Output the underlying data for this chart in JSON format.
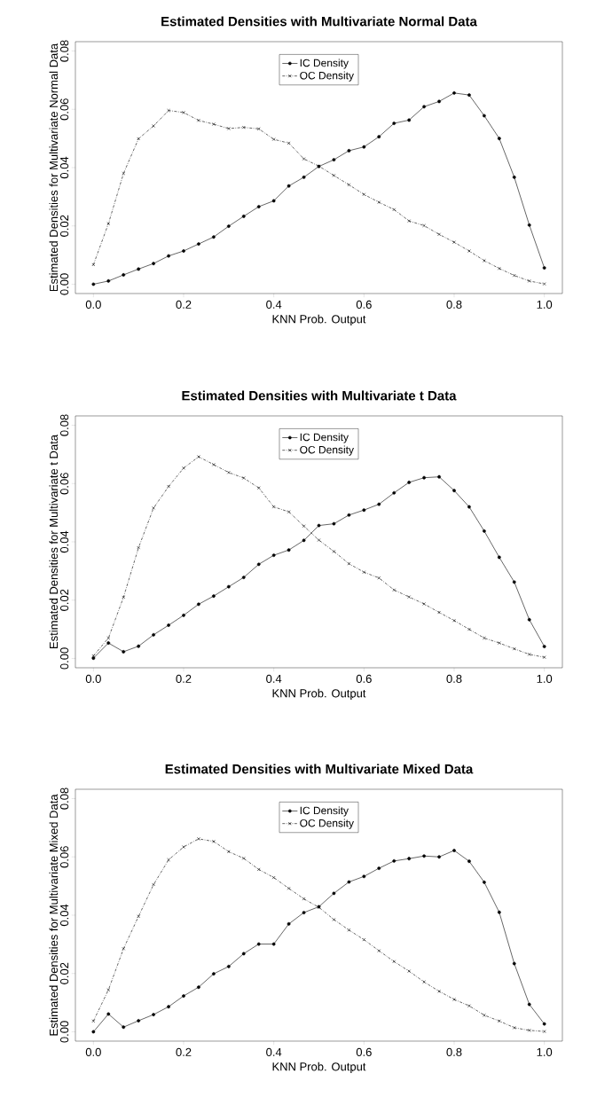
{
  "chart_data": [
    {
      "type": "line",
      "title": "Estimated Densities with Multivariate Normal Data",
      "xlabel": "KNN Prob. Output",
      "ylabel": "Estimated Densities for Multivariate Normal Data",
      "x": [
        0,
        0.0333,
        0.0667,
        0.1,
        0.1333,
        0.1667,
        0.2,
        0.2333,
        0.2667,
        0.3,
        0.3333,
        0.3667,
        0.4,
        0.4333,
        0.4667,
        0.5,
        0.5333,
        0.5667,
        0.6,
        0.6333,
        0.6667,
        0.7,
        0.7333,
        0.7667,
        0.8,
        0.8333,
        0.8667,
        0.9,
        0.9333,
        0.9667,
        1
      ],
      "series": [
        {
          "name": "IC Density",
          "color": "#000000",
          "marker": "circle",
          "line_style": "solid",
          "values": [
            0.0,
            0.0011,
            0.0032,
            0.0052,
            0.0071,
            0.0097,
            0.0114,
            0.0138,
            0.0162,
            0.0199,
            0.0233,
            0.0266,
            0.0286,
            0.0337,
            0.0367,
            0.0404,
            0.0427,
            0.0458,
            0.0471,
            0.0506,
            0.0552,
            0.0563,
            0.0609,
            0.0627,
            0.0656,
            0.0649,
            0.0578,
            0.05,
            0.0367,
            0.0203,
            0.0056
          ]
        },
        {
          "name": "OC Density",
          "color": "#000000",
          "marker": "cross",
          "line_style": "dashed",
          "values": [
            0.0067,
            0.0208,
            0.038,
            0.0499,
            0.0543,
            0.0596,
            0.0589,
            0.0562,
            0.0549,
            0.0534,
            0.0538,
            0.0533,
            0.0497,
            0.0484,
            0.043,
            0.0405,
            0.0373,
            0.0341,
            0.0308,
            0.0281,
            0.0256,
            0.0217,
            0.0201,
            0.0171,
            0.0144,
            0.0114,
            0.0081,
            0.0054,
            0.003,
            0.0011,
            0.0001
          ]
        }
      ],
      "xlim": [
        -0.04,
        1.04
      ],
      "ylim": [
        -0.0032,
        0.0832
      ],
      "xticks": [
        {
          "value": 0,
          "label": "0.0"
        },
        {
          "value": 0.2,
          "label": "0.2"
        },
        {
          "value": 0.4,
          "label": "0.4"
        },
        {
          "value": 0.6,
          "label": "0.6"
        },
        {
          "value": 0.8,
          "label": "0.8"
        },
        {
          "value": 1,
          "label": "1.0"
        }
      ],
      "yticks": [
        {
          "value": 0,
          "label": "0.00"
        },
        {
          "value": 0.02,
          "label": "0.02"
        },
        {
          "value": 0.04,
          "label": "0.04"
        },
        {
          "value": 0.06,
          "label": "0.06"
        },
        {
          "value": 0.08,
          "label": "0.08"
        }
      ],
      "legend": "top",
      "grid": false
    },
    {
      "type": "line",
      "title": "Estimated Densities with Multivariate t Data",
      "xlabel": "KNN Prob. Output",
      "ylabel": "Estimated Densities for Multivariate t Data",
      "x": [
        0,
        0.0333,
        0.0667,
        0.1,
        0.1333,
        0.1667,
        0.2,
        0.2333,
        0.2667,
        0.3,
        0.3333,
        0.3667,
        0.4,
        0.4333,
        0.4667,
        0.5,
        0.5333,
        0.5667,
        0.6,
        0.6333,
        0.6667,
        0.7,
        0.7333,
        0.7667,
        0.8,
        0.8333,
        0.8667,
        0.9,
        0.9333,
        0.9667,
        1
      ],
      "series": [
        {
          "name": "IC Density",
          "color": "#000000",
          "marker": "circle",
          "line_style": "solid",
          "values": [
            0.0001,
            0.0053,
            0.0023,
            0.0042,
            0.0081,
            0.0114,
            0.0148,
            0.0186,
            0.0214,
            0.0246,
            0.0278,
            0.0323,
            0.0354,
            0.0372,
            0.0405,
            0.0456,
            0.0462,
            0.0492,
            0.0509,
            0.0529,
            0.0568,
            0.0604,
            0.062,
            0.0623,
            0.0576,
            0.052,
            0.0437,
            0.0347,
            0.0262,
            0.0133,
            0.0041
          ]
        },
        {
          "name": "OC Density",
          "color": "#000000",
          "marker": "cross",
          "line_style": "dashed",
          "values": [
            0.0009,
            0.007,
            0.021,
            0.038,
            0.0516,
            0.059,
            0.0653,
            0.0692,
            0.0665,
            0.0638,
            0.0619,
            0.0585,
            0.052,
            0.0503,
            0.0454,
            0.0406,
            0.0367,
            0.0325,
            0.0296,
            0.0276,
            0.0235,
            0.0211,
            0.0187,
            0.0158,
            0.013,
            0.01,
            0.007,
            0.0053,
            0.0033,
            0.0014,
            0.0004
          ]
        }
      ],
      "xlim": [
        -0.04,
        1.04
      ],
      "ylim": [
        -0.0032,
        0.0832
      ],
      "xticks": [
        {
          "value": 0,
          "label": "0.0"
        },
        {
          "value": 0.2,
          "label": "0.2"
        },
        {
          "value": 0.4,
          "label": "0.4"
        },
        {
          "value": 0.6,
          "label": "0.6"
        },
        {
          "value": 0.8,
          "label": "0.8"
        },
        {
          "value": 1,
          "label": "1.0"
        }
      ],
      "yticks": [
        {
          "value": 0,
          "label": "0.00"
        },
        {
          "value": 0.02,
          "label": "0.02"
        },
        {
          "value": 0.04,
          "label": "0.04"
        },
        {
          "value": 0.06,
          "label": "0.06"
        },
        {
          "value": 0.08,
          "label": "0.08"
        }
      ],
      "legend": "top",
      "grid": false
    },
    {
      "type": "line",
      "title": "Estimated Densities with Multivariate Mixed Data",
      "xlabel": "KNN Prob. Output",
      "ylabel": "Estimated Densities for Multivariate Mixed Data",
      "x": [
        0,
        0.0333,
        0.0667,
        0.1,
        0.1333,
        0.1667,
        0.2,
        0.2333,
        0.2667,
        0.3,
        0.3333,
        0.3667,
        0.4,
        0.4333,
        0.4667,
        0.5,
        0.5333,
        0.5667,
        0.6,
        0.6333,
        0.6667,
        0.7,
        0.7333,
        0.7667,
        0.8,
        0.8333,
        0.8667,
        0.9,
        0.9333,
        0.9667,
        1
      ],
      "series": [
        {
          "name": "IC Density",
          "color": "#000000",
          "marker": "circle",
          "line_style": "solid",
          "values": [
            0.0,
            0.0061,
            0.0016,
            0.0038,
            0.0059,
            0.0086,
            0.0123,
            0.0153,
            0.0199,
            0.0224,
            0.0268,
            0.0301,
            0.0301,
            0.037,
            0.0409,
            0.0429,
            0.0475,
            0.0514,
            0.0533,
            0.0561,
            0.0586,
            0.0594,
            0.0603,
            0.06,
            0.0622,
            0.0585,
            0.0513,
            0.041,
            0.0234,
            0.0094,
            0.0027
          ]
        },
        {
          "name": "OC Density",
          "color": "#000000",
          "marker": "cross",
          "line_style": "dashed",
          "values": [
            0.0037,
            0.0144,
            0.0285,
            0.0396,
            0.0505,
            0.059,
            0.0634,
            0.0662,
            0.0653,
            0.0618,
            0.0595,
            0.0557,
            0.0529,
            0.0492,
            0.0456,
            0.0427,
            0.0385,
            0.0349,
            0.0316,
            0.0278,
            0.0241,
            0.0208,
            0.0171,
            0.0139,
            0.0111,
            0.0089,
            0.0057,
            0.0037,
            0.0014,
            0.0005,
            0.0001
          ]
        }
      ],
      "xlim": [
        -0.04,
        1.04
      ],
      "ylim": [
        -0.0032,
        0.0832
      ],
      "xticks": [
        {
          "value": 0,
          "label": "0.0"
        },
        {
          "value": 0.2,
          "label": "0.2"
        },
        {
          "value": 0.4,
          "label": "0.4"
        },
        {
          "value": 0.6,
          "label": "0.6"
        },
        {
          "value": 0.8,
          "label": "0.8"
        },
        {
          "value": 1,
          "label": "1.0"
        }
      ],
      "yticks": [
        {
          "value": 0,
          "label": "0.00"
        },
        {
          "value": 0.02,
          "label": "0.02"
        },
        {
          "value": 0.04,
          "label": "0.04"
        },
        {
          "value": 0.06,
          "label": "0.06"
        },
        {
          "value": 0.08,
          "label": "0.08"
        }
      ],
      "legend": "top",
      "grid": false
    }
  ]
}
